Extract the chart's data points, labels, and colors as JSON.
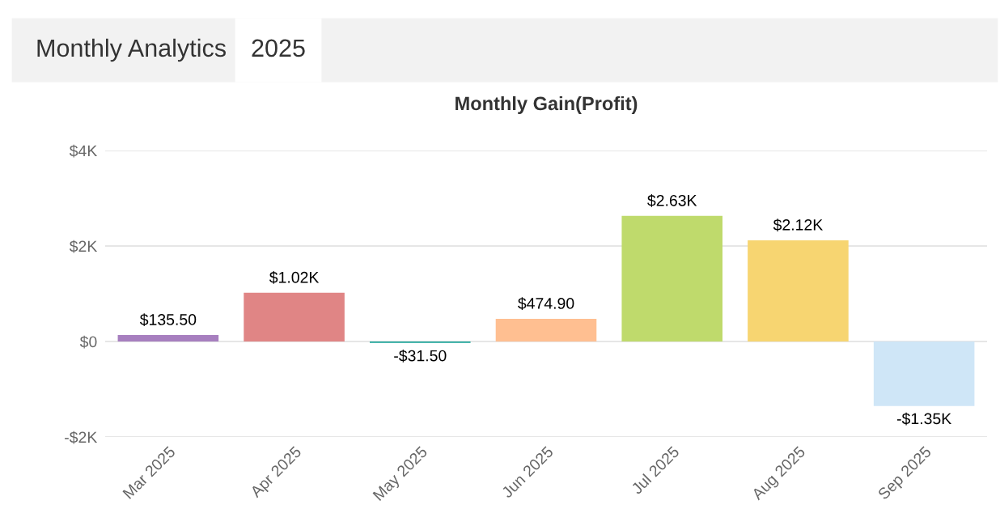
{
  "chart_data": {
    "type": "bar",
    "title": "Monthly Gain(Profit)",
    "annotations": [
      "Monthly Analytics",
      "2025"
    ],
    "categories": [
      "Mar 2025",
      "Apr 2025",
      "May 2025",
      "Jun 2025",
      "Jul 2025",
      "Aug 2025",
      "Sep 2025"
    ],
    "values": [
      135.5,
      1020,
      -31.5,
      474.9,
      2630,
      2120,
      -1350
    ],
    "colors": [
      "#a77fbf",
      "#e08585",
      "#1fa59a",
      "#ffbf91",
      "#bfda6c",
      "#f7d571",
      "#cfe6f7"
    ],
    "value_labels": [
      "$135.50",
      "$1.02K",
      "-$31.50",
      "$474.90",
      "$2.63K",
      "$2.12K",
      "-$1.35K"
    ],
    "ylim": [
      -2000,
      4000
    ],
    "yticks": [
      {
        "value": -2000,
        "label": "-$2K"
      },
      {
        "value": 0,
        "label": "$0"
      },
      {
        "value": 2000,
        "label": "$2K"
      },
      {
        "value": 4000,
        "label": "$4K"
      }
    ],
    "grid": "y"
  }
}
